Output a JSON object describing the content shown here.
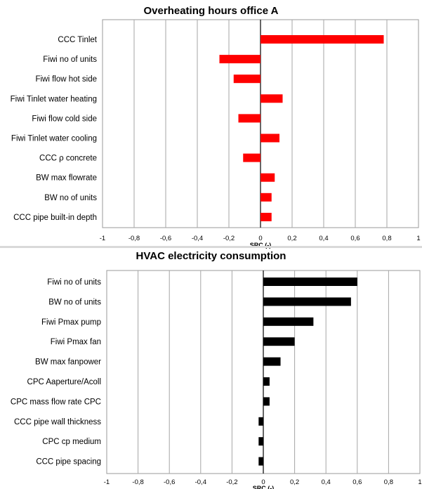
{
  "chart_data": [
    {
      "type": "bar",
      "orientation": "horizontal",
      "title": "Overheating hours office A",
      "xlabel": "SRC (-)",
      "xlim": [
        -1,
        1
      ],
      "xticks": [
        "-1",
        "-0,8",
        "-0,6",
        "-0,4",
        "-0,2",
        "0",
        "0,2",
        "0,4",
        "0,6",
        "0,8",
        "1"
      ],
      "grid": true,
      "bar_color": "#ff0000",
      "categories": [
        "CCC Tinlet",
        "Fiwi no of units",
        "Fiwi flow hot side",
        "Fiwi Tinlet water heating",
        "Fiwi flow cold side",
        "Fiwi Tinlet water cooling",
        "CCC ρ concrete",
        "BW max flowrate",
        "BW no of units",
        "CCC pipe built-in depth"
      ],
      "values": [
        0.78,
        -0.26,
        -0.17,
        0.14,
        -0.14,
        0.12,
        -0.11,
        0.09,
        0.07,
        0.07
      ]
    },
    {
      "type": "bar",
      "orientation": "horizontal",
      "title": "HVAC electricity consumption",
      "xlabel": "SRC (-)",
      "xlim": [
        -1,
        1
      ],
      "xticks": [
        "-1",
        "-0,8",
        "-0,6",
        "-0,4",
        "-0,2",
        "0",
        "0,2",
        "0,4",
        "0,6",
        "0,8",
        "1"
      ],
      "grid": true,
      "bar_color": "#000000",
      "categories": [
        "Fiwi no of units",
        "BW no of units",
        "Fiwi Pmax pump",
        "Fiwi Pmax fan",
        "BW max fanpower",
        "CPC Aaperture/Acoll",
        "CPC mass flow rate CPC",
        "CCC pipe wall thickness",
        "CPC cp medium",
        "CCC pipe spacing"
      ],
      "values": [
        0.6,
        0.56,
        0.32,
        0.2,
        0.11,
        0.04,
        0.04,
        -0.03,
        -0.03,
        -0.03
      ]
    }
  ]
}
